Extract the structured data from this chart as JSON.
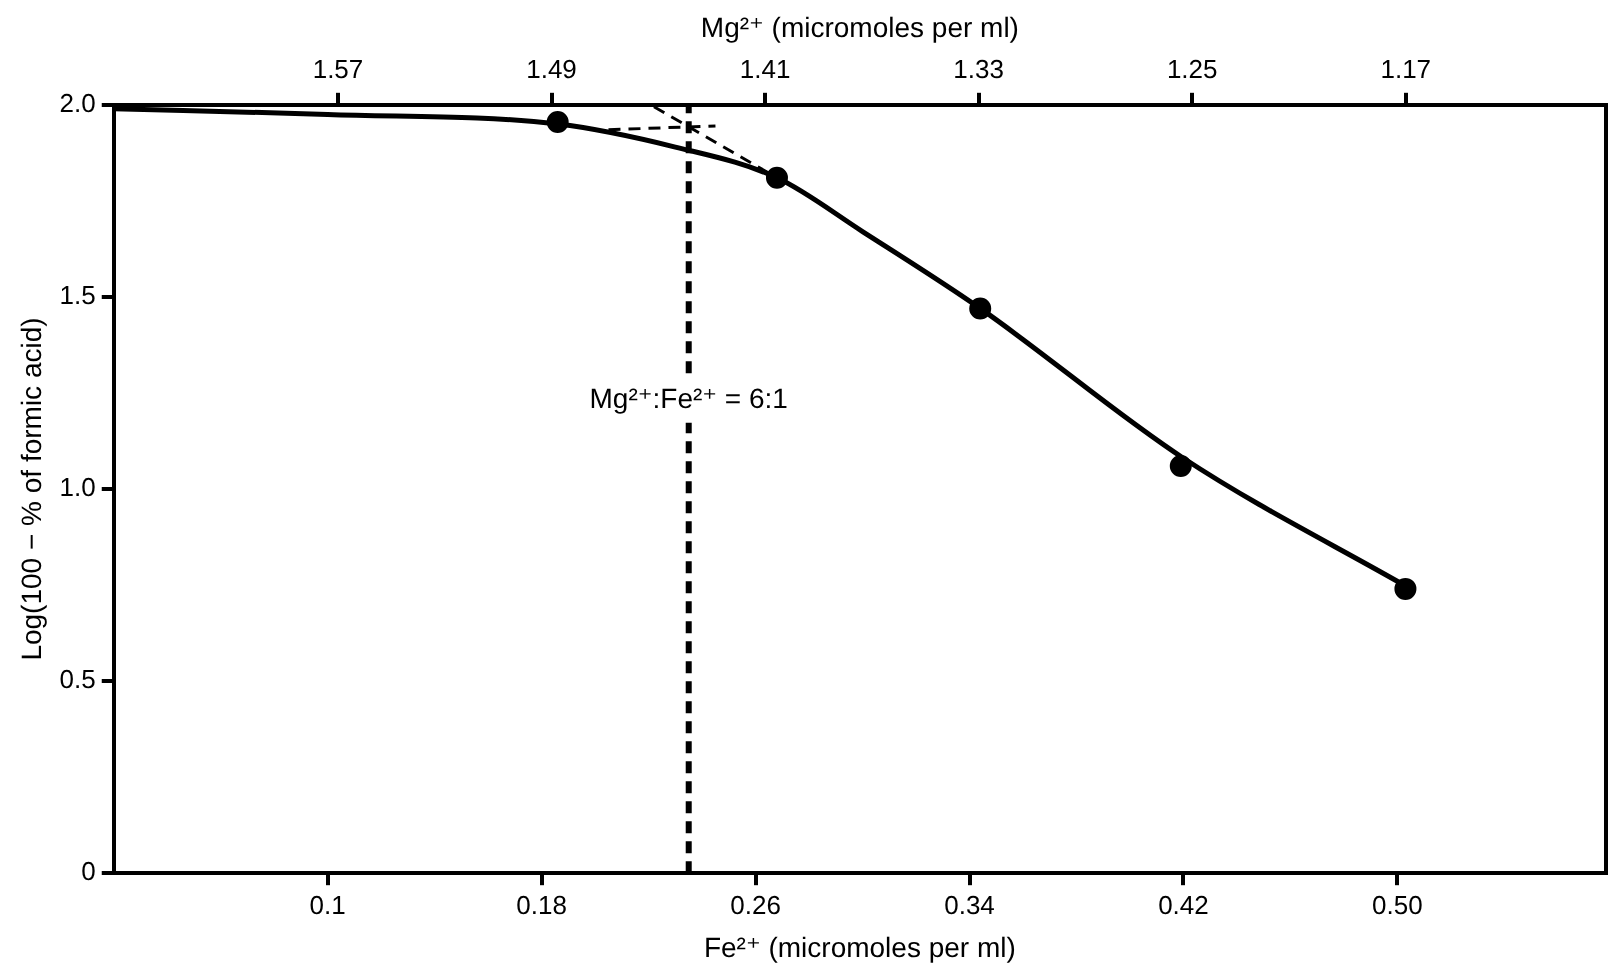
{
  "chart_data": {
    "type": "scatter",
    "xlabel": "Fe²⁺ (micromoles per ml)",
    "ylabel": "Log(100 − % of formic acid)",
    "x2label": "Mg²⁺ (micromoles per ml)",
    "xlim": [
      0.02,
      0.578
    ],
    "xticks": [
      0.1,
      0.18,
      0.26,
      0.34,
      0.42,
      {
        "value": 0.5,
        "label": "0.50"
      }
    ],
    "x2lim": [
      1.654,
      1.095
    ],
    "x2ticks": [
      1.57,
      1.49,
      1.41,
      1.33,
      1.25,
      1.17
    ],
    "ylim": [
      0,
      2.0
    ],
    "yticks": [
      {
        "value": 0,
        "label": "0"
      },
      {
        "value": 0.5,
        "label": "0.5"
      },
      {
        "value": 1,
        "label": "1.0"
      },
      {
        "value": 1.5,
        "label": "1.5"
      },
      {
        "value": 2,
        "label": "2.0"
      }
    ],
    "grid": false,
    "legend": false,
    "series": [
      {
        "type": "line",
        "color": "#000000",
        "marker": "none",
        "line_style": "solid",
        "x": [
          0.02,
          0.1,
          0.186,
          0.23,
          0.268,
          0.3,
          0.344,
          0.42,
          0.505
        ],
        "values": [
          1.99,
          1.975,
          1.95,
          1.89,
          1.81,
          1.67,
          1.47,
          1.08,
          0.74
        ]
      },
      {
        "type": "scatter",
        "color": "#000000",
        "marker": "circle",
        "x": [
          0.186,
          0.268,
          0.344,
          0.419,
          0.503
        ],
        "values": [
          1.955,
          1.81,
          1.47,
          1.06,
          0.74
        ]
      },
      {
        "type": "line",
        "color": "#000000",
        "marker": "none",
        "line_style": "dashed",
        "x": [
          0.205,
          0.245
        ],
        "values": [
          1.935,
          1.945
        ]
      },
      {
        "type": "line",
        "color": "#000000",
        "marker": "none",
        "line_style": "dashed",
        "x": [
          0.222,
          0.268
        ],
        "values": [
          1.995,
          1.81
        ]
      }
    ],
    "annotations": [
      "Mg²⁺:Fe²⁺ = 6:1"
    ],
    "ref_lines": [
      {
        "axis": "x",
        "value": 0.235,
        "line_style": "dashed",
        "color": "#000000"
      }
    ]
  }
}
